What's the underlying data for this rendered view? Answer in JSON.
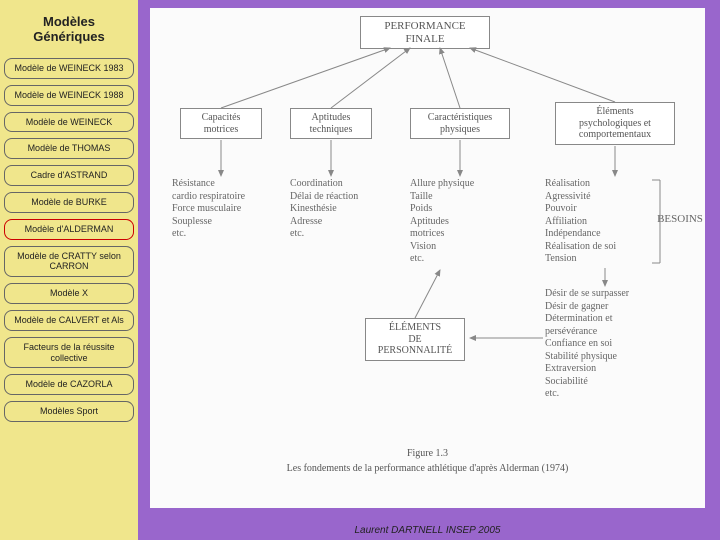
{
  "colors": {
    "page_bg": "#9966cc",
    "sidebar_bg": "#f0e68c",
    "nav_border": "#666666",
    "nav_active_border": "#cc0000",
    "diagram_bg": "#fbfbfb",
    "diagram_line": "#888888",
    "diagram_text": "#555555"
  },
  "sidebar": {
    "title": "Modèles Génériques",
    "items": [
      {
        "label": "Modèle de WEINECK 1983",
        "active": false
      },
      {
        "label": "Modèle de WEINECK 1988",
        "active": false
      },
      {
        "label": "Modèle de WEINECK",
        "active": false
      },
      {
        "label": "Modèle de THOMAS",
        "active": false
      },
      {
        "label": "Cadre d'ASTRAND",
        "active": false
      },
      {
        "label": "Modèle de BURKE",
        "active": false
      },
      {
        "label": "Modèle d'ALDERMAN",
        "active": true
      },
      {
        "label": "Modèle de CRATTY selon CARRON",
        "active": false
      },
      {
        "label": "Modèle X",
        "active": false
      },
      {
        "label": "Modèle de CALVERT et Als",
        "active": false
      },
      {
        "label": "Facteurs de la réussite collective",
        "active": false
      },
      {
        "label": "Modèle de CAZORLA",
        "active": false
      },
      {
        "label": "Modèles Sport",
        "active": false
      }
    ]
  },
  "diagram": {
    "top_box": "PERFORMANCE\nFINALE",
    "row2": [
      "Capacités\nmotrices",
      "Aptitudes\ntechniques",
      "Caractéristiques\nphysiques",
      "Éléments\npsychologiques et\ncomportementaux"
    ],
    "row3": [
      "Résistance\ncardio respiratoire\nForce musculaire\nSouplesse\netc.",
      "Coordination\nDélai de réaction\nKinesthésie\nAdresse\netc.",
      "Allure physique\nTaille\nPoids\nAptitudes\nmotrices\nVision\netc.",
      "Réalisation\nAgressivité\nPouvoir\nAffiliation\nIndépendance\nRéalisation de soi\nTension"
    ],
    "besoins_label": "BESOINS",
    "row4_left": "ÉLÉMENTS\nDE\nPERSONNALITÉ",
    "row4_right": "Désir de se surpasser\nDésir de gagner\nDétermination et\npersévérance\nConfiance en soi\nStabilité physique\nExtraversion\nSociabilité\netc.",
    "figure_no": "Figure 1.3",
    "caption": "Les fondements de la performance athlétique d'après Alderman (1974)"
  },
  "footer": "Laurent DARTNELL INSEP 2005"
}
